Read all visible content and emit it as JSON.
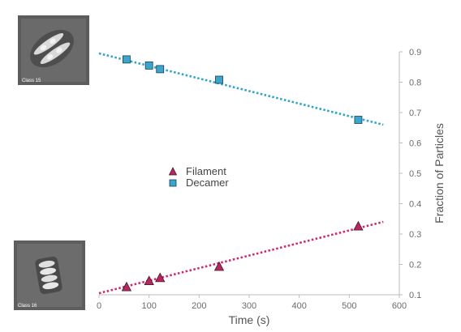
{
  "colors": {
    "decamer": "#2ea4c9",
    "decamer_marker": "#3aa6d0",
    "filament": "#cc2a6e",
    "filament_marker": "#b8255f",
    "axis": "#bdbdbd",
    "text": "#555555"
  },
  "thumbnails": [
    {
      "label": "Class 15",
      "content": "decamer particle class average"
    },
    {
      "label": "Class 16",
      "content": "filament particle class average"
    }
  ],
  "chart_data": {
    "type": "scatter",
    "xlabel": "Time (s)",
    "ylabel": "Fraction of Particles",
    "xlim": [
      0,
      600
    ],
    "ylim": [
      0.1,
      0.9
    ],
    "xticks": [
      0,
      100,
      200,
      300,
      400,
      500,
      600
    ],
    "yticks": [
      0.1,
      0.2,
      0.3,
      0.4,
      0.5,
      0.6,
      0.7,
      0.8,
      0.9
    ],
    "y_axis_position": "right",
    "grid": false,
    "legend_position": "center-left",
    "series": [
      {
        "name": "Filament",
        "marker": "triangle",
        "x": [
          55,
          100,
          122,
          240,
          518
        ],
        "y": [
          0.125,
          0.145,
          0.155,
          0.192,
          0.325
        ],
        "trendline": {
          "x": [
            0,
            568
          ],
          "y": [
            0.105,
            0.34
          ]
        }
      },
      {
        "name": "Decamer",
        "marker": "square",
        "x": [
          55,
          100,
          122,
          240,
          518
        ],
        "y": [
          0.875,
          0.855,
          0.843,
          0.808,
          0.676
        ],
        "trendline": {
          "x": [
            0,
            568
          ],
          "y": [
            0.895,
            0.66
          ]
        }
      }
    ]
  }
}
